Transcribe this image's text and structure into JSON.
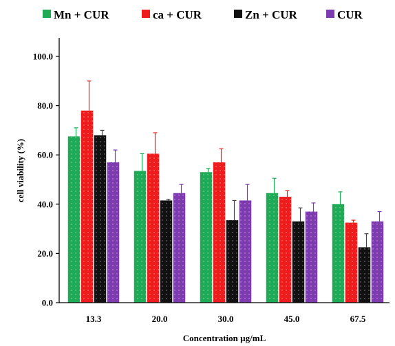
{
  "chart_data": {
    "type": "bar",
    "xlabel": "Concentration µg/mL",
    "ylabel": "cell viability  (%)",
    "categories": [
      "13.3",
      "20.0",
      "30.0",
      "45.0",
      "67.5"
    ],
    "ylim": [
      0,
      100
    ],
    "yticks": [
      "0.0",
      "20.0",
      "40.0",
      "60.0",
      "80.0",
      "100.0"
    ],
    "grid": false,
    "legend_position": "top",
    "series": [
      {
        "name": "Mn + CUR",
        "color": "#1faa55",
        "values": [
          67.5,
          53.5,
          53.0,
          44.5,
          40.0
        ],
        "errors": [
          3.5,
          7.0,
          1.5,
          6.0,
          5.0
        ]
      },
      {
        "name": "ca + CUR",
        "color": "#ee1c1c",
        "values": [
          78.0,
          60.5,
          57.0,
          43.0,
          32.5
        ],
        "errors": [
          12.0,
          8.5,
          5.5,
          2.5,
          1.0
        ]
      },
      {
        "name": "Zn + CUR",
        "color": "#111111",
        "values": [
          68.0,
          41.5,
          33.5,
          33.0,
          22.5
        ],
        "errors": [
          2.0,
          0.5,
          8.0,
          5.5,
          5.5
        ]
      },
      {
        "name": "CUR",
        "color": "#7e3bb0",
        "values": [
          57.0,
          44.5,
          41.5,
          37.0,
          33.0
        ],
        "errors": [
          5.0,
          3.5,
          6.5,
          3.5,
          4.0
        ]
      }
    ]
  }
}
